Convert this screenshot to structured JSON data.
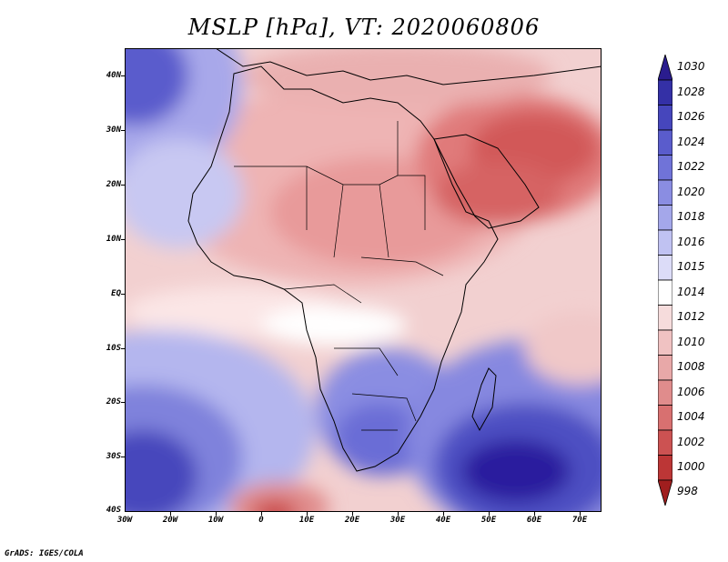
{
  "title": "MSLP [hPa], VT: 2020060806",
  "map": {
    "y_labels": [
      "40N",
      "30N",
      "20N",
      "10N",
      "EQ",
      "10S",
      "20S",
      "30S",
      "40S"
    ],
    "x_labels": [
      "30W",
      "20W",
      "10W",
      "0",
      "10E",
      "20E",
      "30E",
      "40E",
      "50E",
      "60E",
      "70E"
    ],
    "lon_range": [
      -30,
      75
    ],
    "lat_range": [
      -40,
      45
    ]
  },
  "colorbar": {
    "levels": [
      "1030",
      "1028",
      "1026",
      "1024",
      "1022",
      "1020",
      "1018",
      "1016",
      "1015",
      "1014",
      "1012",
      "1010",
      "1008",
      "1006",
      "1004",
      "1002",
      "1000",
      "998"
    ],
    "colors": [
      "#2a1c8e",
      "#3430a6",
      "#4646bc",
      "#5a5ccc",
      "#7073d8",
      "#8a8de2",
      "#a4a7ea",
      "#c0c2f2",
      "#dcdcf8",
      "#ffffff",
      "#f6dcdc",
      "#f0c2c2",
      "#e8a8a8",
      "#e08c8c",
      "#d87070",
      "#cc5252",
      "#bc3636",
      "#a01e1e"
    ]
  },
  "credit": "GrADS: IGES/COLA"
}
